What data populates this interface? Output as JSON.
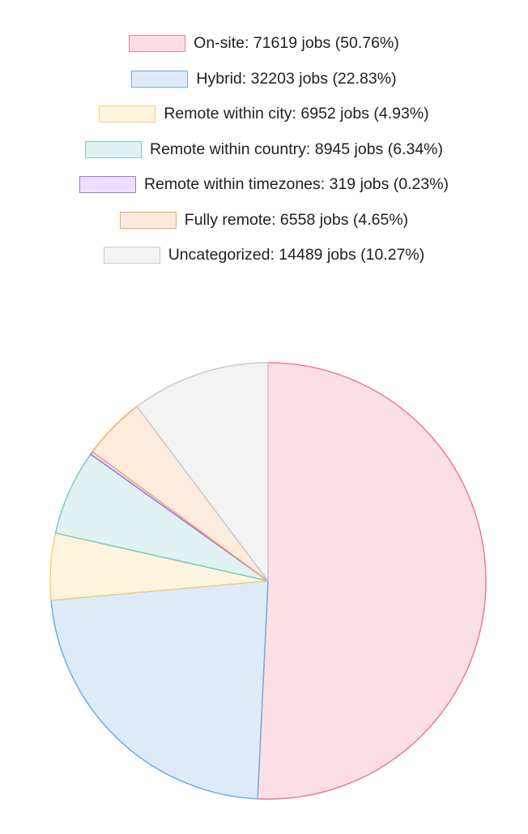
{
  "chart_data": {
    "type": "pie",
    "legend_position": "top",
    "slices": [
      {
        "name": "On-site",
        "value": 71619,
        "percent": 50.76,
        "label": "On-site: 71619 jobs (50.76%)",
        "fill": "#fcdfe5",
        "stroke": "#f07a93"
      },
      {
        "name": "Hybrid",
        "value": 32203,
        "percent": 22.83,
        "label": "Hybrid: 32203 jobs (22.83%)",
        "fill": "#ddebf8",
        "stroke": "#6aaee6"
      },
      {
        "name": "Remote within city",
        "value": 6952,
        "percent": 4.93,
        "label": "Remote within city: 6952 jobs (4.93%)",
        "fill": "#fff5df",
        "stroke": "#f5d074"
      },
      {
        "name": "Remote within country",
        "value": 8945,
        "percent": 6.34,
        "label": "Remote within country: 8945 jobs (6.34%)",
        "fill": "#e0f2f1",
        "stroke": "#7ccac4"
      },
      {
        "name": "Remote within timezones",
        "value": 319,
        "percent": 0.23,
        "label": "Remote within timezones: 319 jobs (0.23%)",
        "fill": "#ebe1fe",
        "stroke": "#9e74f2"
      },
      {
        "name": "Fully remote",
        "value": 6558,
        "percent": 4.65,
        "label": "Fully remote: 6558 jobs (4.65%)",
        "fill": "#fdecde",
        "stroke": "#f5a860"
      },
      {
        "name": "Uncategorized",
        "value": 14489,
        "percent": 10.27,
        "label": "Uncategorized: 14489 jobs (10.27%)",
        "fill": "#f3f3f4",
        "stroke": "#cbcbcd"
      }
    ]
  }
}
